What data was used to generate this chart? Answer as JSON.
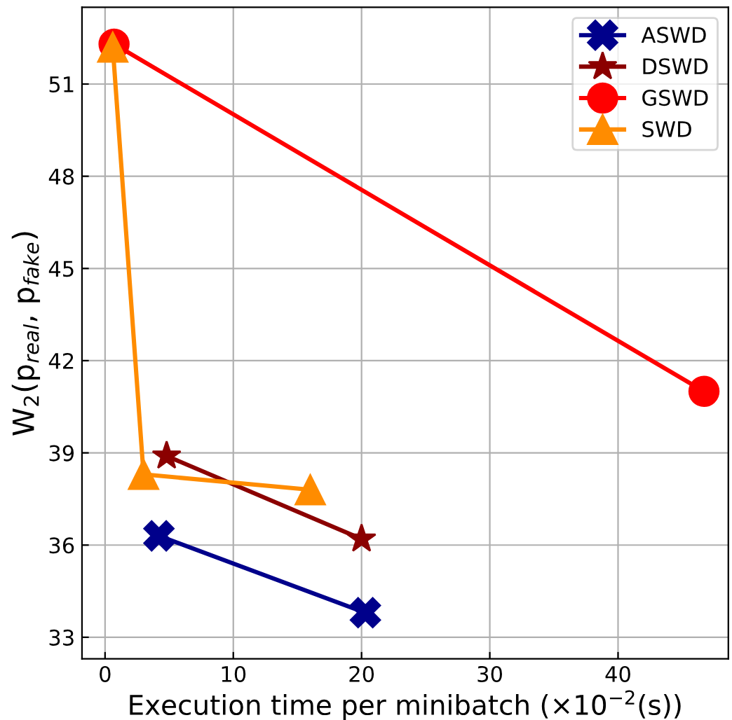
{
  "chart_data": {
    "type": "line",
    "xlabel": "Execution time per minibatch (×10$^{−2}$(s))",
    "ylabel": "W$_{2}$(p$_{real}$, p$_{fake}$)",
    "series": [
      {
        "name": "ASWD",
        "color": "#00008b",
        "marker": "cross",
        "x": [
          4.2,
          20.3
        ],
        "values": [
          36.3,
          33.8
        ]
      },
      {
        "name": "DSWD",
        "color": "#8b0000",
        "marker": "star",
        "x": [
          4.8,
          20.0
        ],
        "values": [
          38.9,
          36.2
        ]
      },
      {
        "name": "GSWD",
        "color": "#ff0000",
        "marker": "circle",
        "x": [
          0.7,
          46.7
        ],
        "values": [
          52.3,
          41.0
        ]
      },
      {
        "name": "SWD",
        "color": "#ff8c00",
        "marker": "triangle",
        "x": [
          0.6,
          3.0,
          16.0
        ],
        "values": [
          52.2,
          38.3,
          37.8
        ]
      }
    ],
    "xlim": [
      -1.8,
      48.6
    ],
    "ylim": [
      32.3,
      53.5
    ],
    "xticks": [
      0,
      10,
      20,
      30,
      40
    ],
    "yticks": [
      33,
      36,
      39,
      42,
      45,
      48,
      51
    ],
    "grid": true,
    "legend": "top right",
    "line_style": "solid"
  }
}
